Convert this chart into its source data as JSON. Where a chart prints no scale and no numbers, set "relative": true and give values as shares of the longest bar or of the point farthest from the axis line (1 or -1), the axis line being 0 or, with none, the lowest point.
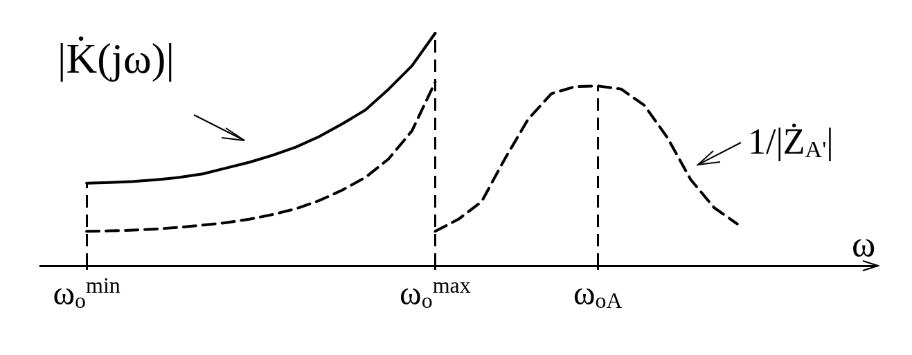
{
  "chart_data": {
    "type": "line",
    "relative": true,
    "xlabel": "ω",
    "categories": [
      null,
      null,
      "ω$_{o}$$^{min}$",
      null,
      null,
      null,
      null,
      null,
      null,
      null,
      null,
      null,
      null,
      null,
      null,
      null,
      null,
      "ω$_{o}$$^{max}$",
      null,
      null,
      null,
      null,
      null,
      null,
      "ω$_{oA}$",
      null,
      null,
      null,
      null,
      null,
      null,
      null,
      null,
      null,
      null,
      null,
      null
    ],
    "series": [
      {
        "color": "#000000",
        "line_style": "solid",
        "values": [
          null,
          null,
          0.355,
          0.358,
          0.362,
          0.37,
          0.38,
          0.395,
          0.42,
          0.445,
          0.475,
          0.51,
          0.555,
          0.61,
          0.67,
          0.76,
          0.86,
          1.0,
          null,
          null,
          null,
          null,
          null,
          null,
          null,
          null,
          null,
          null,
          null,
          null,
          null,
          null,
          null,
          null,
          null,
          null,
          null
        ]
      },
      {
        "color": "#000000",
        "line_style": "dashed",
        "values": [
          null,
          null,
          0.148,
          0.15,
          0.153,
          0.158,
          0.165,
          0.175,
          0.185,
          0.2,
          0.22,
          0.245,
          0.28,
          0.325,
          0.38,
          0.46,
          0.58,
          0.79,
          null,
          null,
          null,
          null,
          null,
          null,
          null,
          null,
          null,
          null,
          null,
          null,
          null,
          null,
          null,
          null,
          null,
          null,
          null
        ]
      },
      {
        "color": "#000000",
        "line_style": "dashed",
        "values": [
          null,
          null,
          null,
          null,
          null,
          null,
          null,
          null,
          null,
          null,
          null,
          null,
          null,
          null,
          null,
          null,
          null,
          0.148,
          0.2,
          0.276,
          0.46,
          0.63,
          0.74,
          0.77,
          0.773,
          0.76,
          0.69,
          0.55,
          0.37,
          0.25,
          0.18,
          null,
          null,
          null,
          null,
          null,
          null
        ]
      }
    ],
    "ref_lines": [
      {
        "axis": "x",
        "value": "ω$_{o}$$^{min}$",
        "line_style": "dashed"
      },
      {
        "axis": "x",
        "value": "ω$_{o}$$^{max}$",
        "line_style": "dashed"
      },
      {
        "axis": "x",
        "value": "ω$_{oA}$",
        "line_style": "dashed"
      }
    ],
    "annotations": [
      "|K̇(jω)|",
      "1/|Ż$_{A'}$|"
    ],
    "grid": false,
    "marker": "none"
  }
}
